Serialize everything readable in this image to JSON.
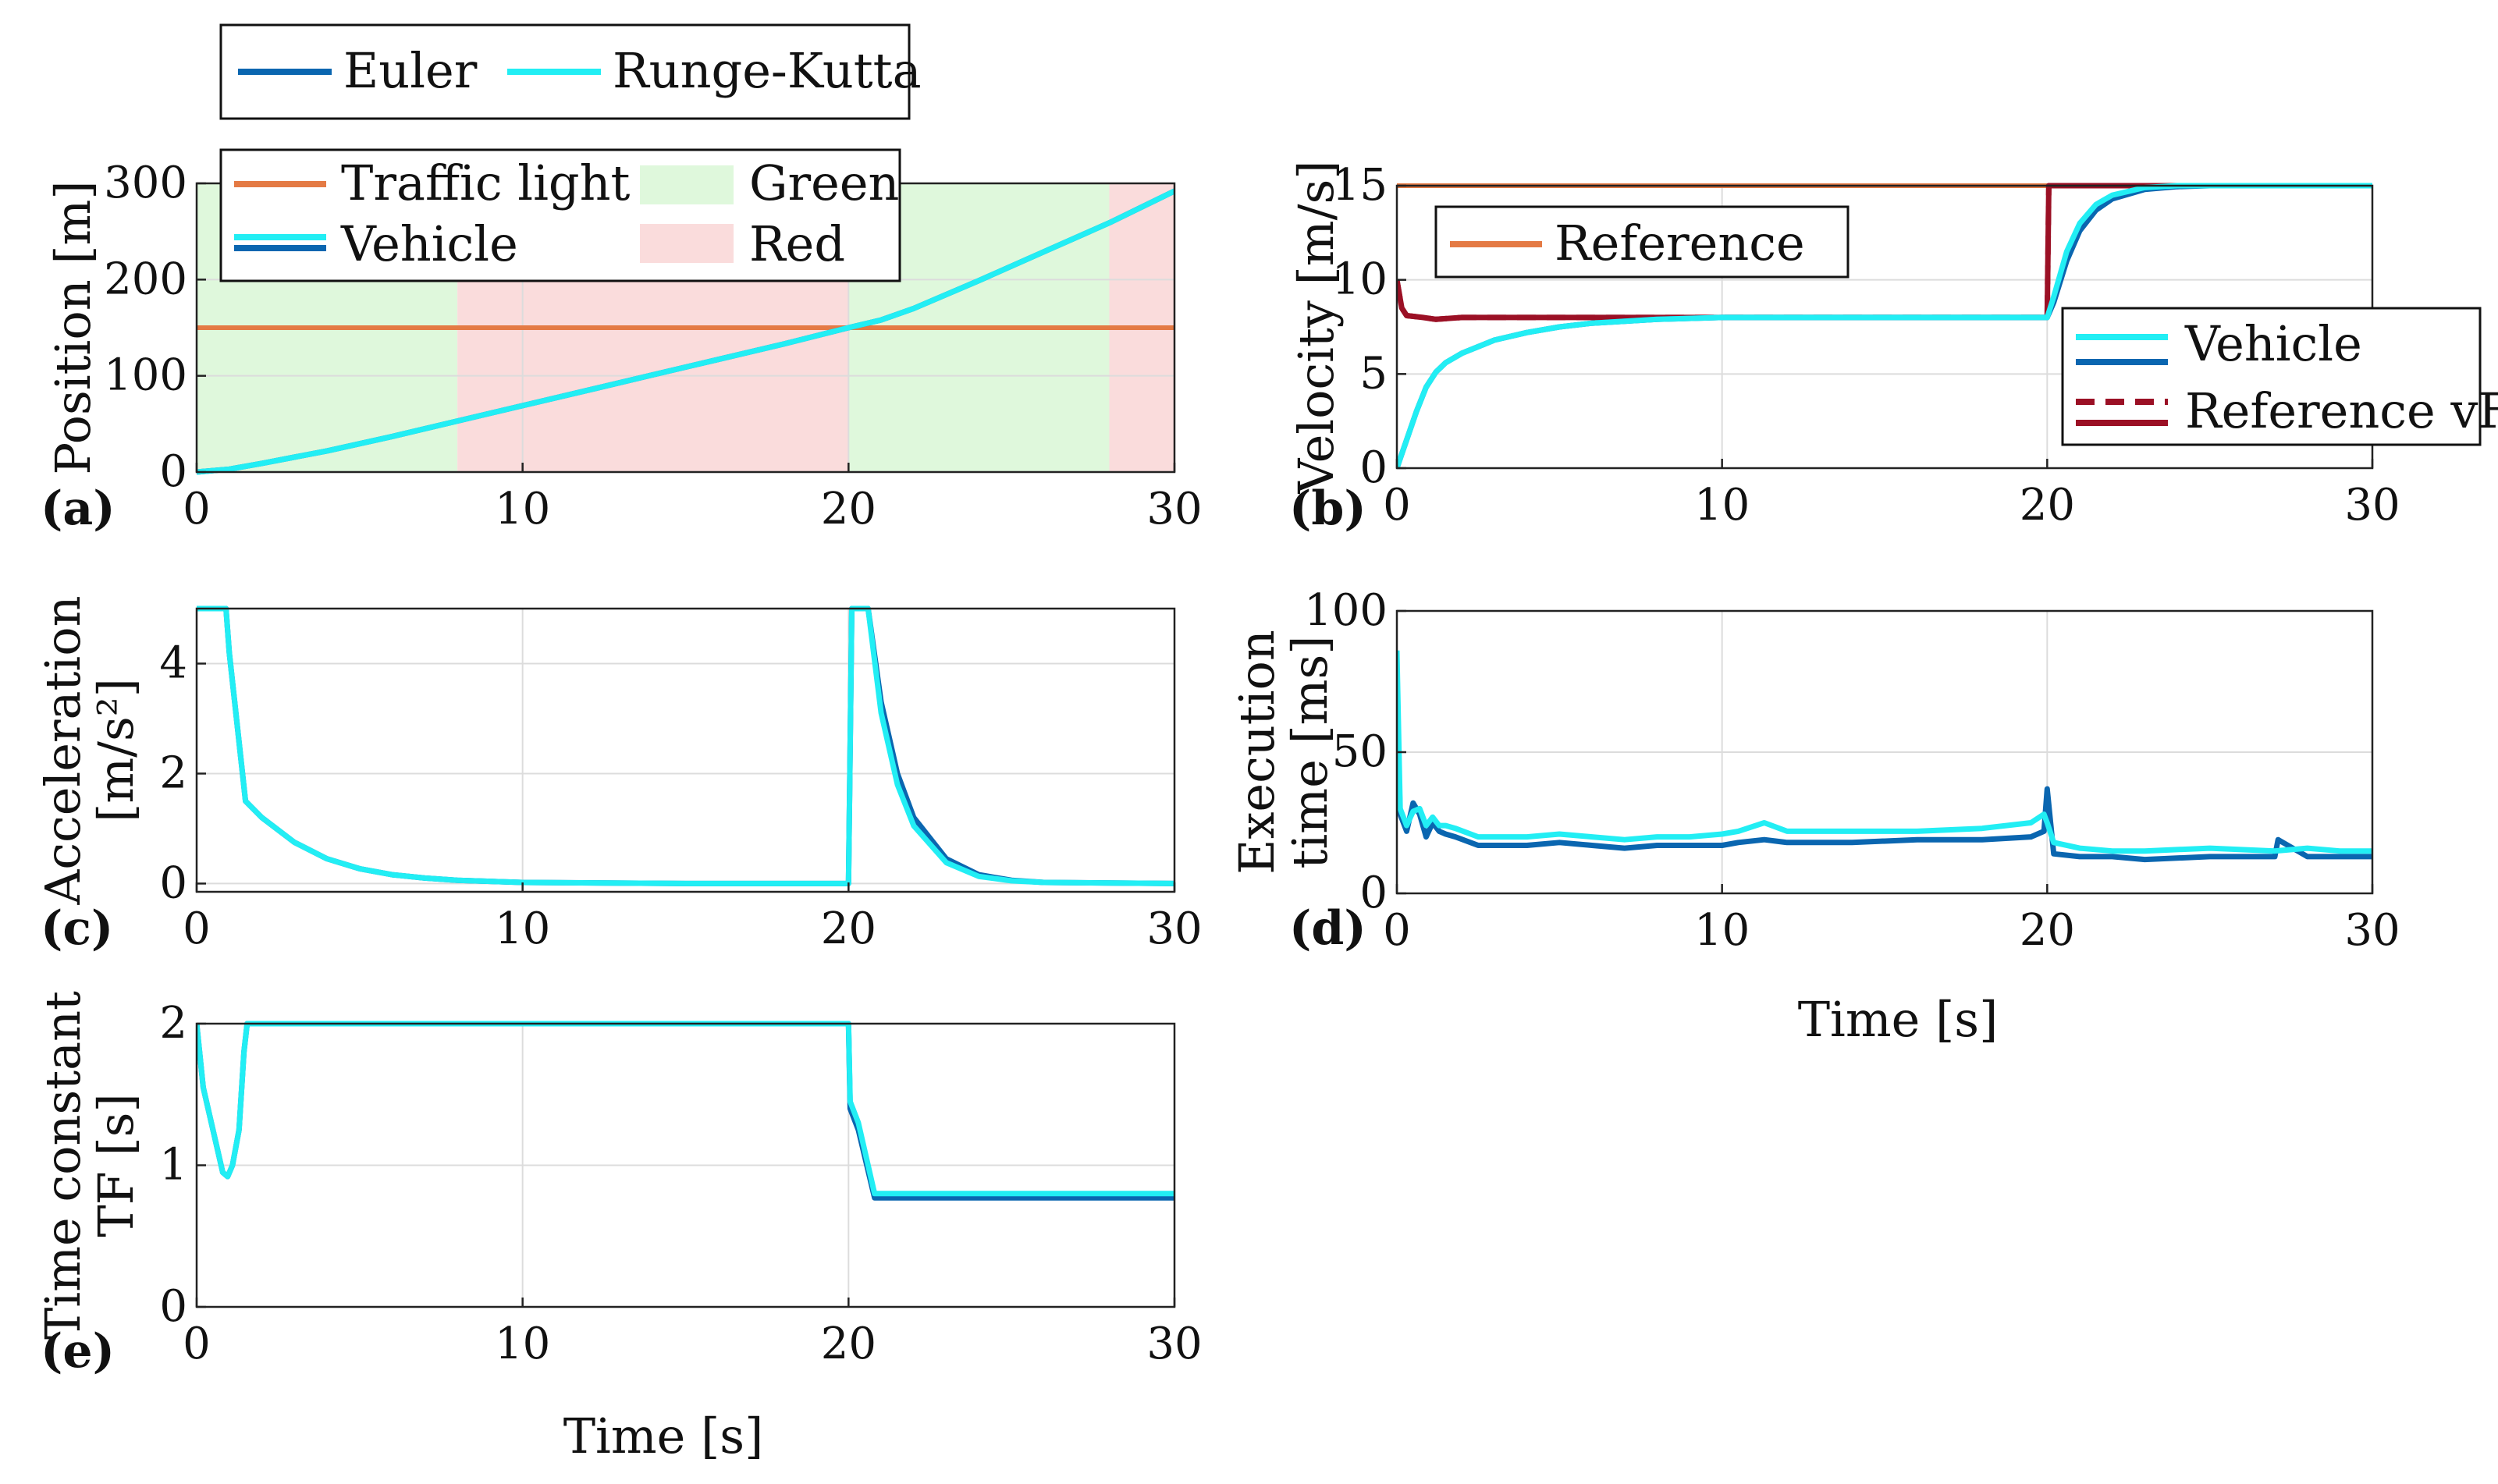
{
  "global_legend": {
    "euler_label": "Euler",
    "rk_label": "Runge-Kutta",
    "euler_color": "#0a66b0",
    "rk_color": "#22eef4"
  },
  "x_label_shared": "Time [s]",
  "chart_data": [
    {
      "id": "a",
      "panel_label": "(a)",
      "type": "line",
      "ylabel": [
        "Position [m]"
      ],
      "xlim": [
        0,
        30
      ],
      "ylim": [
        0,
        300
      ],
      "xticks": [
        "0",
        "10",
        "20",
        "30"
      ],
      "yticks": [
        "0",
        "100",
        "200",
        "300"
      ],
      "legend_items": {
        "traffic_light": "Traffic light",
        "vehicle": "Vehicle",
        "green": "Green",
        "red": "Red"
      },
      "colors": {
        "traffic_light": "#e47a44",
        "green": "#dff8dc",
        "red": "#fadcdc"
      },
      "phases": [
        {
          "state": "green",
          "from": 0,
          "to": 8
        },
        {
          "state": "red",
          "from": 8,
          "to": 20
        },
        {
          "state": "green",
          "from": 20,
          "to": 28
        },
        {
          "state": "red",
          "from": 28,
          "to": 30
        }
      ],
      "traffic_light_position": 150,
      "series": [
        {
          "name": "Euler",
          "x": [
            0,
            1,
            2,
            4,
            6,
            8,
            10,
            12,
            14,
            16,
            18,
            20,
            21,
            22,
            24,
            26,
            28,
            30
          ],
          "y": [
            0,
            3,
            9,
            22,
            37,
            53,
            69,
            85,
            101,
            117,
            133,
            150,
            158,
            170,
            199,
            229,
            259,
            292
          ]
        },
        {
          "name": "Runge-Kutta",
          "x": [
            0,
            1,
            2,
            4,
            6,
            8,
            10,
            12,
            14,
            16,
            18,
            20,
            21,
            22,
            24,
            26,
            28,
            30
          ],
          "y": [
            0,
            3,
            9,
            22,
            37,
            53,
            69,
            85,
            101,
            117,
            133,
            150,
            158,
            170,
            199,
            229,
            259,
            292
          ]
        }
      ]
    },
    {
      "id": "b",
      "panel_label": "(b)",
      "type": "line",
      "ylabel": [
        "Velocity [m/s]"
      ],
      "xlim": [
        0,
        30
      ],
      "ylim": [
        0,
        15
      ],
      "xticks": [
        "0",
        "10",
        "20",
        "30"
      ],
      "yticks": [
        "0",
        "5",
        "10",
        "15"
      ],
      "legend_reference": "Reference",
      "legend_items": {
        "vehicle": "Vehicle",
        "reference_vf": "Reference vF"
      },
      "colors": {
        "reference": "#e47a44",
        "reference_vf": "#9b1025"
      },
      "series": [
        {
          "name": "Reference",
          "x": [
            0,
            30
          ],
          "y": [
            15,
            15
          ]
        },
        {
          "name": "Reference vF (dashed)",
          "x": [
            0,
            0.15,
            0.3,
            0.8,
            1.2,
            2,
            10,
            19.95,
            20,
            20.05,
            30
          ],
          "y": [
            10,
            8.5,
            8.1,
            8,
            7.9,
            8,
            8,
            8,
            8,
            15,
            15
          ]
        },
        {
          "name": "Reference vF",
          "x": [
            0,
            0.15,
            0.3,
            0.8,
            1.2,
            2,
            10,
            19.95,
            20,
            20.05,
            30
          ],
          "y": [
            10,
            8.5,
            8.1,
            8,
            7.9,
            8,
            8,
            8,
            8,
            15,
            15
          ]
        },
        {
          "name": "Vehicle Euler",
          "x": [
            0,
            0.3,
            0.6,
            0.9,
            1.2,
            1.5,
            2,
            3,
            4,
            5,
            6,
            7,
            8,
            10,
            12,
            20,
            20.2,
            20.6,
            21,
            21.5,
            22,
            23,
            24,
            25,
            30
          ],
          "y": [
            0,
            1.5,
            3,
            4.3,
            5.1,
            5.6,
            6.1,
            6.8,
            7.2,
            7.5,
            7.7,
            7.8,
            7.9,
            8,
            8,
            8,
            8.8,
            11,
            12.6,
            13.7,
            14.3,
            14.8,
            14.95,
            15,
            15
          ]
        },
        {
          "name": "Vehicle Runge-Kutta",
          "x": [
            0,
            0.3,
            0.6,
            0.9,
            1.2,
            1.5,
            2,
            3,
            4,
            5,
            6,
            7,
            8,
            10,
            12,
            20,
            20.2,
            20.6,
            21,
            21.5,
            22,
            23,
            24,
            25,
            30
          ],
          "y": [
            0,
            1.5,
            3,
            4.3,
            5.1,
            5.6,
            6.1,
            6.8,
            7.2,
            7.5,
            7.7,
            7.8,
            7.9,
            8,
            8,
            8,
            9.1,
            11.5,
            13,
            14,
            14.5,
            14.9,
            15,
            15,
            15
          ]
        }
      ]
    },
    {
      "id": "c",
      "panel_label": "(c)",
      "type": "line",
      "ylabel": [
        "Acceleration",
        "[m/s²]"
      ],
      "xlim": [
        0,
        30
      ],
      "ylim": [
        -0.15,
        5
      ],
      "xticks": [
        "0",
        "10",
        "20",
        "30"
      ],
      "yticks": [
        "0",
        "2",
        "4"
      ],
      "ytick_values": [
        0,
        2,
        4
      ],
      "series": [
        {
          "name": "Euler",
          "x": [
            0,
            0.9,
            1,
            1.5,
            2,
            3,
            4,
            5,
            6,
            7,
            8,
            10,
            15,
            19.95,
            20,
            20.1,
            20.6,
            21,
            21.5,
            22,
            23,
            24,
            25,
            26,
            30
          ],
          "y": [
            5,
            5,
            4.2,
            1.5,
            1.2,
            0.75,
            0.45,
            0.27,
            0.16,
            0.1,
            0.06,
            0.02,
            0,
            0,
            0,
            5,
            5,
            3.3,
            2,
            1.2,
            0.45,
            0.16,
            0.06,
            0.02,
            0
          ]
        },
        {
          "name": "Runge-Kutta",
          "x": [
            0,
            0.9,
            1,
            1.5,
            2,
            3,
            4,
            5,
            6,
            7,
            8,
            10,
            15,
            19.95,
            20,
            20.1,
            20.6,
            21,
            21.5,
            22,
            23,
            24,
            25,
            26,
            30
          ],
          "y": [
            5,
            5,
            4.2,
            1.5,
            1.2,
            0.75,
            0.45,
            0.27,
            0.16,
            0.1,
            0.06,
            0.02,
            0,
            0,
            0,
            5,
            5,
            3.1,
            1.8,
            1.05,
            0.38,
            0.13,
            0.05,
            0.02,
            0
          ]
        }
      ]
    },
    {
      "id": "d",
      "panel_label": "(d)",
      "type": "line",
      "ylabel": [
        "Execution",
        "time [ms]"
      ],
      "xlim": [
        0,
        30
      ],
      "ylim": [
        0,
        100
      ],
      "xticks": [
        "0",
        "10",
        "20",
        "30"
      ],
      "yticks": [
        "0",
        "50",
        "100"
      ],
      "series": [
        {
          "name": "Euler",
          "x": [
            0,
            0.1,
            0.3,
            0.5,
            0.7,
            0.9,
            1.1,
            1.3,
            1.5,
            1.8,
            2.5,
            4,
            5,
            6,
            7,
            8,
            9,
            10,
            10.5,
            11.3,
            12,
            14,
            16,
            18,
            19.5,
            19.9,
            20,
            20.2,
            21,
            22,
            23,
            25,
            27,
            27.1,
            28,
            29,
            30
          ],
          "y": [
            70,
            28,
            22,
            32,
            28,
            20,
            25,
            22,
            21,
            20,
            17,
            17,
            18,
            17,
            16,
            17,
            17,
            17,
            18,
            19,
            18,
            18,
            19,
            19,
            20,
            22,
            37,
            14,
            13,
            13,
            12,
            13,
            13,
            19,
            13,
            13,
            13
          ]
        },
        {
          "name": "Runge-Kutta",
          "x": [
            0,
            0.1,
            0.3,
            0.5,
            0.7,
            0.9,
            1.1,
            1.3,
            1.5,
            1.8,
            2.5,
            4,
            5,
            6,
            7,
            8,
            9,
            10,
            10.5,
            11.3,
            12,
            14,
            16,
            18,
            19.5,
            19.9,
            20,
            20.2,
            21,
            22,
            23,
            25,
            27,
            28,
            29,
            30
          ],
          "y": [
            86,
            30,
            24,
            29,
            30,
            24,
            27,
            24,
            24,
            23,
            20,
            20,
            21,
            20,
            19,
            20,
            20,
            21,
            22,
            25,
            22,
            22,
            22,
            23,
            25,
            28,
            25,
            18,
            16,
            15,
            15,
            16,
            15,
            16,
            15,
            15
          ]
        }
      ]
    },
    {
      "id": "e",
      "panel_label": "(e)",
      "type": "line",
      "ylabel": [
        "Time constant",
        "TF [s]"
      ],
      "xlim": [
        0,
        30
      ],
      "ylim": [
        0,
        2
      ],
      "xticks": [
        "0",
        "10",
        "20",
        "30"
      ],
      "yticks": [
        "0",
        "1",
        "2"
      ],
      "series": [
        {
          "name": "Euler",
          "x": [
            0,
            0.2,
            0.5,
            0.8,
            0.95,
            1.1,
            1.3,
            1.45,
            1.55,
            20,
            20.05,
            20.3,
            20.8,
            30
          ],
          "y": [
            2,
            1.55,
            1.25,
            0.95,
            0.92,
            1.0,
            1.25,
            1.8,
            2,
            2,
            1.4,
            1.25,
            0.77,
            0.77
          ]
        },
        {
          "name": "Runge-Kutta",
          "x": [
            0,
            0.2,
            0.5,
            0.8,
            0.95,
            1.1,
            1.3,
            1.45,
            1.55,
            20,
            20.05,
            20.3,
            20.8,
            30
          ],
          "y": [
            2,
            1.55,
            1.25,
            0.95,
            0.92,
            1.0,
            1.25,
            1.8,
            2,
            2,
            1.45,
            1.3,
            0.8,
            0.8
          ]
        }
      ]
    }
  ]
}
